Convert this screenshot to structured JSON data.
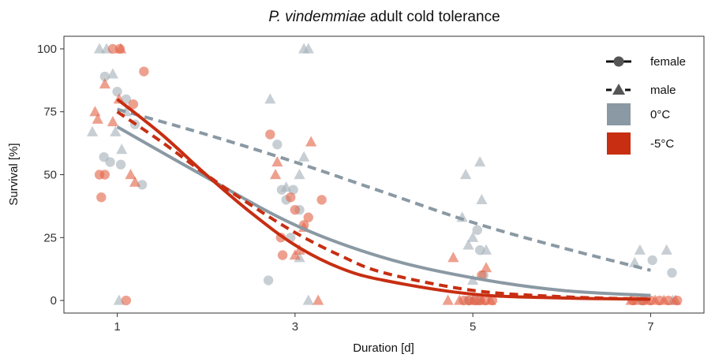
{
  "chart_data": {
    "type": "scatter",
    "title_italic": "P. vindemmiae",
    "title_rest": " adult cold tolerance",
    "xlabel": "Duration [d]",
    "ylabel": "Survival [%]",
    "xlim": [
      0.4,
      7.6
    ],
    "ylim": [
      -5,
      105
    ],
    "x_ticks": [
      1,
      3,
      5,
      7
    ],
    "x_tick_labels": [
      "1",
      "3",
      "5",
      "7"
    ],
    "y_ticks": [
      0,
      25,
      50,
      75,
      100
    ],
    "y_tick_labels": [
      "0",
      "25",
      "50",
      "75",
      "100"
    ],
    "grid": false,
    "legend_position": "top-right",
    "legend": {
      "female": "female",
      "male": "male",
      "temp_0": "0°C",
      "temp_m5": "-5°C"
    },
    "colors": {
      "temp_0": "#8a99a3",
      "temp_m5": "#c72e12",
      "points_0": "#a7b2b9",
      "points_m5": "#e3664b"
    },
    "points": [
      {
        "x": 0.72,
        "y": 67,
        "sex": "male",
        "temp": "0"
      },
      {
        "x": 0.8,
        "y": 100,
        "sex": "male",
        "temp": "0"
      },
      {
        "x": 0.88,
        "y": 100,
        "sex": "male",
        "temp": "0"
      },
      {
        "x": 0.95,
        "y": 90,
        "sex": "male",
        "temp": "0"
      },
      {
        "x": 1.02,
        "y": 0,
        "sex": "male",
        "temp": "0"
      },
      {
        "x": 1.05,
        "y": 60,
        "sex": "male",
        "temp": "0"
      },
      {
        "x": 0.98,
        "y": 67,
        "sex": "male",
        "temp": "0"
      },
      {
        "x": 1.1,
        "y": 75,
        "sex": "male",
        "temp": "0"
      },
      {
        "x": 0.85,
        "y": 57,
        "sex": "female",
        "temp": "0"
      },
      {
        "x": 0.92,
        "y": 55,
        "sex": "female",
        "temp": "0"
      },
      {
        "x": 0.86,
        "y": 89,
        "sex": "female",
        "temp": "0"
      },
      {
        "x": 1.0,
        "y": 83,
        "sex": "female",
        "temp": "0"
      },
      {
        "x": 1.04,
        "y": 54,
        "sex": "female",
        "temp": "0"
      },
      {
        "x": 1.1,
        "y": 80,
        "sex": "female",
        "temp": "0"
      },
      {
        "x": 1.2,
        "y": 70,
        "sex": "female",
        "temp": "0"
      },
      {
        "x": 1.28,
        "y": 46,
        "sex": "female",
        "temp": "0"
      },
      {
        "x": 0.75,
        "y": 75,
        "sex": "male",
        "temp": "-5"
      },
      {
        "x": 0.78,
        "y": 72,
        "sex": "male",
        "temp": "-5"
      },
      {
        "x": 0.86,
        "y": 86,
        "sex": "male",
        "temp": "-5"
      },
      {
        "x": 0.95,
        "y": 71,
        "sex": "male",
        "temp": "-5"
      },
      {
        "x": 1.04,
        "y": 100,
        "sex": "male",
        "temp": "-5"
      },
      {
        "x": 1.15,
        "y": 50,
        "sex": "male",
        "temp": "-5"
      },
      {
        "x": 1.2,
        "y": 47,
        "sex": "male",
        "temp": "-5"
      },
      {
        "x": 1.02,
        "y": 80,
        "sex": "male",
        "temp": "-5"
      },
      {
        "x": 0.8,
        "y": 50,
        "sex": "female",
        "temp": "-5"
      },
      {
        "x": 0.86,
        "y": 50,
        "sex": "female",
        "temp": "-5"
      },
      {
        "x": 0.82,
        "y": 41,
        "sex": "female",
        "temp": "-5"
      },
      {
        "x": 0.95,
        "y": 100,
        "sex": "female",
        "temp": "-5"
      },
      {
        "x": 1.03,
        "y": 100,
        "sex": "female",
        "temp": "-5"
      },
      {
        "x": 1.1,
        "y": 0,
        "sex": "female",
        "temp": "-5"
      },
      {
        "x": 1.18,
        "y": 78,
        "sex": "female",
        "temp": "-5"
      },
      {
        "x": 1.3,
        "y": 91,
        "sex": "female",
        "temp": "-5"
      },
      {
        "x": 2.72,
        "y": 80,
        "sex": "male",
        "temp": "0"
      },
      {
        "x": 2.9,
        "y": 45,
        "sex": "male",
        "temp": "0"
      },
      {
        "x": 3.05,
        "y": 50,
        "sex": "male",
        "temp": "0"
      },
      {
        "x": 3.1,
        "y": 57,
        "sex": "male",
        "temp": "0"
      },
      {
        "x": 3.1,
        "y": 100,
        "sex": "male",
        "temp": "0"
      },
      {
        "x": 3.15,
        "y": 100,
        "sex": "male",
        "temp": "0"
      },
      {
        "x": 3.15,
        "y": 0,
        "sex": "male",
        "temp": "0"
      },
      {
        "x": 3.05,
        "y": 17,
        "sex": "male",
        "temp": "0"
      },
      {
        "x": 2.7,
        "y": 8,
        "sex": "female",
        "temp": "0"
      },
      {
        "x": 2.8,
        "y": 62,
        "sex": "female",
        "temp": "0"
      },
      {
        "x": 2.85,
        "y": 44,
        "sex": "female",
        "temp": "0"
      },
      {
        "x": 2.9,
        "y": 40,
        "sex": "female",
        "temp": "0"
      },
      {
        "x": 2.95,
        "y": 25,
        "sex": "female",
        "temp": "0"
      },
      {
        "x": 3.05,
        "y": 36,
        "sex": "female",
        "temp": "0"
      },
      {
        "x": 2.98,
        "y": 44,
        "sex": "female",
        "temp": "0"
      },
      {
        "x": 2.78,
        "y": 50,
        "sex": "male",
        "temp": "-5"
      },
      {
        "x": 2.8,
        "y": 55,
        "sex": "male",
        "temp": "-5"
      },
      {
        "x": 3.0,
        "y": 18,
        "sex": "male",
        "temp": "-5"
      },
      {
        "x": 3.05,
        "y": 20,
        "sex": "male",
        "temp": "-5"
      },
      {
        "x": 3.1,
        "y": 29,
        "sex": "male",
        "temp": "-5"
      },
      {
        "x": 3.18,
        "y": 63,
        "sex": "male",
        "temp": "-5"
      },
      {
        "x": 3.26,
        "y": 0,
        "sex": "male",
        "temp": "-5"
      },
      {
        "x": 2.72,
        "y": 66,
        "sex": "female",
        "temp": "-5"
      },
      {
        "x": 2.84,
        "y": 25,
        "sex": "female",
        "temp": "-5"
      },
      {
        "x": 2.86,
        "y": 18,
        "sex": "female",
        "temp": "-5"
      },
      {
        "x": 2.95,
        "y": 41,
        "sex": "female",
        "temp": "-5"
      },
      {
        "x": 3.0,
        "y": 36,
        "sex": "female",
        "temp": "-5"
      },
      {
        "x": 3.15,
        "y": 33,
        "sex": "female",
        "temp": "-5"
      },
      {
        "x": 3.1,
        "y": 30,
        "sex": "female",
        "temp": "-5"
      },
      {
        "x": 3.3,
        "y": 40,
        "sex": "female",
        "temp": "-5"
      },
      {
        "x": 4.88,
        "y": 33,
        "sex": "male",
        "temp": "0"
      },
      {
        "x": 4.92,
        "y": 50,
        "sex": "male",
        "temp": "0"
      },
      {
        "x": 4.95,
        "y": 22,
        "sex": "male",
        "temp": "0"
      },
      {
        "x": 5.0,
        "y": 25,
        "sex": "male",
        "temp": "0"
      },
      {
        "x": 5.08,
        "y": 55,
        "sex": "male",
        "temp": "0"
      },
      {
        "x": 5.1,
        "y": 40,
        "sex": "male",
        "temp": "0"
      },
      {
        "x": 5.15,
        "y": 20,
        "sex": "male",
        "temp": "0"
      },
      {
        "x": 5.0,
        "y": 8,
        "sex": "male",
        "temp": "0"
      },
      {
        "x": 5.05,
        "y": 28,
        "sex": "female",
        "temp": "0"
      },
      {
        "x": 5.08,
        "y": 20,
        "sex": "female",
        "temp": "0"
      },
      {
        "x": 5.12,
        "y": 10,
        "sex": "female",
        "temp": "0"
      },
      {
        "x": 4.95,
        "y": 0,
        "sex": "female",
        "temp": "0"
      },
      {
        "x": 5.05,
        "y": 0,
        "sex": "female",
        "temp": "0"
      },
      {
        "x": 4.72,
        "y": 0,
        "sex": "male",
        "temp": "-5"
      },
      {
        "x": 4.78,
        "y": 17,
        "sex": "male",
        "temp": "-5"
      },
      {
        "x": 4.85,
        "y": 0,
        "sex": "male",
        "temp": "-5"
      },
      {
        "x": 5.0,
        "y": 0,
        "sex": "male",
        "temp": "-5"
      },
      {
        "x": 5.1,
        "y": 0,
        "sex": "male",
        "temp": "-5"
      },
      {
        "x": 5.15,
        "y": 13,
        "sex": "male",
        "temp": "-5"
      },
      {
        "x": 5.2,
        "y": 0,
        "sex": "male",
        "temp": "-5"
      },
      {
        "x": 4.9,
        "y": 0,
        "sex": "female",
        "temp": "-5"
      },
      {
        "x": 4.96,
        "y": 0,
        "sex": "female",
        "temp": "-5"
      },
      {
        "x": 5.02,
        "y": 0,
        "sex": "female",
        "temp": "-5"
      },
      {
        "x": 5.08,
        "y": 0,
        "sex": "female",
        "temp": "-5"
      },
      {
        "x": 5.14,
        "y": 0,
        "sex": "female",
        "temp": "-5"
      },
      {
        "x": 5.22,
        "y": 0,
        "sex": "female",
        "temp": "-5"
      },
      {
        "x": 5.1,
        "y": 10,
        "sex": "female",
        "temp": "-5"
      },
      {
        "x": 6.82,
        "y": 15,
        "sex": "male",
        "temp": "0"
      },
      {
        "x": 6.88,
        "y": 20,
        "sex": "male",
        "temp": "0"
      },
      {
        "x": 7.18,
        "y": 20,
        "sex": "male",
        "temp": "0"
      },
      {
        "x": 7.25,
        "y": 0,
        "sex": "male",
        "temp": "0"
      },
      {
        "x": 7.02,
        "y": 16,
        "sex": "female",
        "temp": "0"
      },
      {
        "x": 7.24,
        "y": 11,
        "sex": "female",
        "temp": "0"
      },
      {
        "x": 6.9,
        "y": 0,
        "sex": "female",
        "temp": "0"
      },
      {
        "x": 6.78,
        "y": 0,
        "sex": "male",
        "temp": "-5"
      },
      {
        "x": 6.85,
        "y": 0,
        "sex": "male",
        "temp": "-5"
      },
      {
        "x": 6.95,
        "y": 0,
        "sex": "male",
        "temp": "-5"
      },
      {
        "x": 7.05,
        "y": 0,
        "sex": "male",
        "temp": "-5"
      },
      {
        "x": 7.15,
        "y": 0,
        "sex": "male",
        "temp": "-5"
      },
      {
        "x": 7.28,
        "y": 0,
        "sex": "male",
        "temp": "-5"
      },
      {
        "x": 6.8,
        "y": 0,
        "sex": "female",
        "temp": "-5"
      },
      {
        "x": 6.92,
        "y": 0,
        "sex": "female",
        "temp": "-5"
      },
      {
        "x": 7.0,
        "y": 0,
        "sex": "female",
        "temp": "-5"
      },
      {
        "x": 7.1,
        "y": 0,
        "sex": "female",
        "temp": "-5"
      },
      {
        "x": 7.2,
        "y": 0,
        "sex": "female",
        "temp": "-5"
      },
      {
        "x": 7.3,
        "y": 0,
        "sex": "female",
        "temp": "-5"
      }
    ],
    "series": [
      {
        "sex": "female",
        "temp": "0",
        "x": [
          1,
          2,
          3,
          4,
          5,
          6,
          7
        ],
        "y": [
          69,
          49,
          30,
          17,
          9,
          4,
          2
        ]
      },
      {
        "sex": "male",
        "temp": "0",
        "x": [
          1,
          2,
          3,
          4,
          5,
          6,
          7
        ],
        "y": [
          76,
          66,
          55,
          43,
          31,
          21,
          12
        ]
      },
      {
        "sex": "female",
        "temp": "-5",
        "x": [
          1,
          1.5,
          2,
          2.5,
          3,
          3.5,
          4,
          5,
          6,
          7
        ],
        "y": [
          80,
          66,
          50,
          35,
          22,
          13,
          8,
          2.5,
          1,
          0.5
        ]
      },
      {
        "sex": "male",
        "temp": "-5",
        "x": [
          1,
          1.5,
          2,
          2.5,
          3,
          3.5,
          4,
          5,
          6,
          7
        ],
        "y": [
          75,
          63,
          50,
          38,
          27,
          18,
          11,
          4,
          1.5,
          0.5
        ]
      }
    ]
  }
}
